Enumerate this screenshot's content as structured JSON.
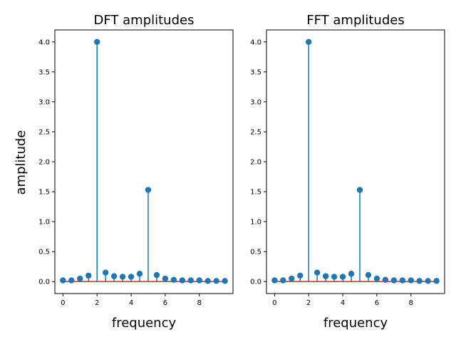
{
  "figure": {
    "background": "#ffffff",
    "stem_color": "#1f77b4",
    "baseline_color": "#d62728"
  },
  "chart_data": [
    {
      "type": "stem",
      "title": "DFT amplitudes",
      "xlabel": "frequency",
      "ylabel": "amplitude",
      "xlim": [
        -0.475,
        9.975
      ],
      "ylim": [
        -0.2,
        4.2
      ],
      "xticks": [
        0,
        2,
        4,
        6,
        8
      ],
      "yticks": [
        0.0,
        0.5,
        1.0,
        1.5,
        2.0,
        2.5,
        3.0,
        3.5,
        4.0
      ],
      "ytick_labels": [
        "0.0",
        "0.5",
        "1.0",
        "1.5",
        "2.0",
        "2.5",
        "3.0",
        "3.5",
        "4.0"
      ],
      "baseline": 0,
      "grid": false,
      "x": [
        0,
        0.5,
        1,
        1.5,
        2,
        2.5,
        3,
        3.5,
        4,
        4.5,
        5,
        5.5,
        6,
        6.5,
        7,
        7.5,
        8,
        8.5,
        9,
        9.5
      ],
      "values": [
        0.02,
        0.02,
        0.05,
        0.1,
        4.0,
        0.15,
        0.09,
        0.08,
        0.08,
        0.13,
        1.53,
        0.11,
        0.05,
        0.03,
        0.02,
        0.02,
        0.02,
        0.01,
        0.01,
        0.01
      ]
    },
    {
      "type": "stem",
      "title": "FFT amplitudes",
      "xlabel": "frequency",
      "ylabel": "",
      "xlim": [
        -0.475,
        9.975
      ],
      "ylim": [
        -0.2,
        4.2
      ],
      "xticks": [
        0,
        2,
        4,
        6,
        8
      ],
      "yticks": [
        0.0,
        0.5,
        1.0,
        1.5,
        2.0,
        2.5,
        3.0,
        3.5,
        4.0
      ],
      "ytick_labels": [
        "0.0",
        "0.5",
        "1.0",
        "1.5",
        "2.0",
        "2.5",
        "3.0",
        "3.5",
        "4.0"
      ],
      "baseline": 0,
      "grid": false,
      "x": [
        0,
        0.5,
        1,
        1.5,
        2,
        2.5,
        3,
        3.5,
        4,
        4.5,
        5,
        5.5,
        6,
        6.5,
        7,
        7.5,
        8,
        8.5,
        9,
        9.5
      ],
      "values": [
        0.02,
        0.02,
        0.05,
        0.1,
        4.0,
        0.15,
        0.09,
        0.08,
        0.08,
        0.13,
        1.53,
        0.11,
        0.05,
        0.03,
        0.02,
        0.02,
        0.02,
        0.01,
        0.01,
        0.01
      ]
    }
  ]
}
